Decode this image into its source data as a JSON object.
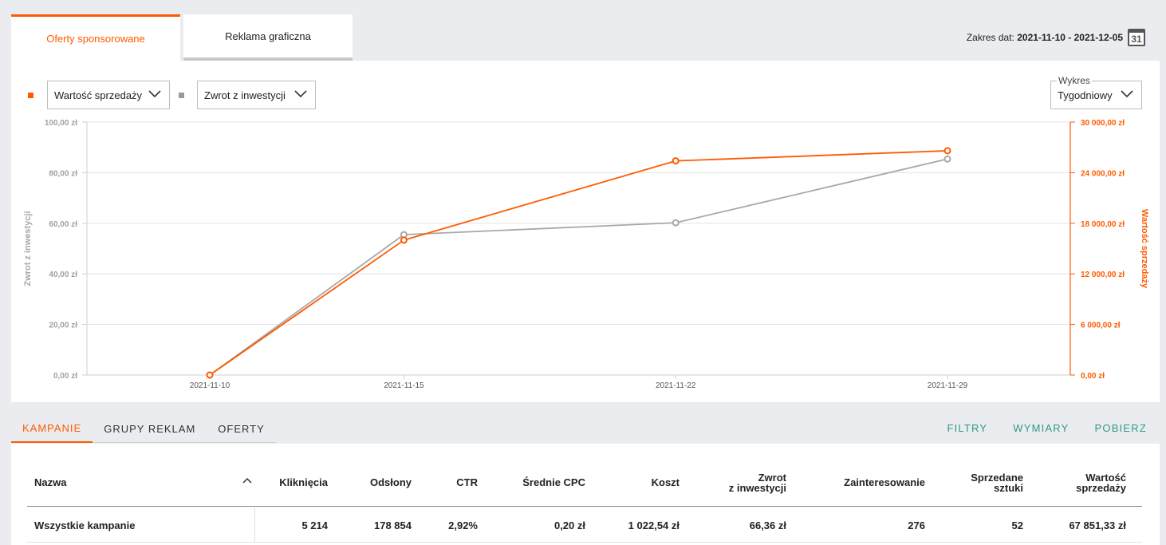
{
  "tabs": [
    {
      "label": "Oferty sponsorowane",
      "active": true
    },
    {
      "label": "Reklama graficzna",
      "active": false
    }
  ],
  "date_range": {
    "label": "Zakres dat:",
    "value": "2021-11-10 - 2021-12-05",
    "calendar_day": "31"
  },
  "controls": {
    "series1_select": "Wartość sprzedaży",
    "series2_select": "Zwrot z inwestycji",
    "chart_period_label": "Wykres",
    "chart_period_value": "Tygodniowy"
  },
  "colors": {
    "orange": "#ff5a00",
    "gray": "#a8a8a8",
    "teal": "#2e9a86"
  },
  "chart_data": {
    "type": "line",
    "x": [
      "2021-11-10",
      "2021-11-15",
      "2021-11-22",
      "2021-11-29"
    ],
    "y_left_label": "Zwrot z inwestycji",
    "y_right_label": "Wartość sprzedaży",
    "y_left_ticks": [
      "0,00 zł",
      "20,00 zł",
      "40,00 zł",
      "60,00 zł",
      "80,00 zł",
      "100,00 zł"
    ],
    "y_right_ticks": [
      "0,00 zł",
      "6 000,00 zł",
      "12 000,00 zł",
      "18 000,00 zł",
      "24 000,00 zł",
      "30 000,00 zł"
    ],
    "y_left_lim": [
      0,
      100
    ],
    "y_right_lim": [
      0,
      30000
    ],
    "series": [
      {
        "name": "Wartość sprzedaży",
        "axis": "right",
        "color": "#ff5a00",
        "values": [
          0,
          16000,
          25400,
          26600
        ]
      },
      {
        "name": "Zwrot z inwestycji",
        "axis": "left",
        "color": "#a8a8a8",
        "values": [
          0,
          55.5,
          60.2,
          85.4
        ]
      }
    ],
    "grid": true
  },
  "bottom_tabs": [
    {
      "label": "KAMPANIE",
      "active": true
    },
    {
      "label": "GRUPY REKLAM",
      "active": false
    },
    {
      "label": "OFERTY",
      "active": false
    }
  ],
  "actions": [
    "FILTRY",
    "WYMIARY",
    "POBIERZ"
  ],
  "table": {
    "columns": {
      "name": "Nazwa",
      "clicks": "Kliknięcia",
      "views": "Odsłony",
      "ctr": "CTR",
      "avg_cpc": "Średnie CPC",
      "cost": "Koszt",
      "roi_1": "Zwrot",
      "roi_2": "z inwestycji",
      "interest": "Zainteresowanie",
      "sold_1": "Sprzedane",
      "sold_2": "sztuki",
      "value_1": "Wartość",
      "value_2": "sprzedaży"
    },
    "rows": [
      {
        "name": "Wszystkie kampanie",
        "clicks": "5 214",
        "views": "178 854",
        "ctr": "2,92%",
        "avg_cpc": "0,20 zł",
        "cost": "1 022,54 zł",
        "roi": "66,36 zł",
        "interest": "276",
        "sold": "52",
        "value": "67 851,33 zł"
      }
    ]
  }
}
